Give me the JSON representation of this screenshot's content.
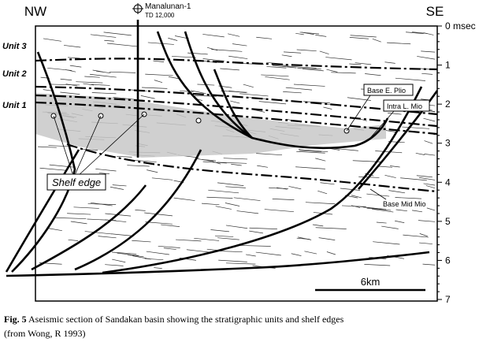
{
  "header": {
    "left": "NW",
    "right": "SE"
  },
  "well": {
    "name": "Manalunan-1",
    "depth": "TD 12,000"
  },
  "units": [
    "Unit 3",
    "Unit 2",
    "Unit 1"
  ],
  "horizons": [
    "Base E. Plio",
    "Intra L. Mio",
    "Base Mid Mio"
  ],
  "annotation": "Shelf edge",
  "depth_axis": {
    "ticks": [
      "0 msec",
      "1",
      "2",
      "3",
      "4",
      "5",
      "6",
      "7"
    ]
  },
  "scale_bar": "6km",
  "caption": {
    "label": "Fig. 5",
    "text": "Aseismic section of Sandakan basin showing the stratigraphic units and shelf edges",
    "source": "(from Wong, R 1993)"
  }
}
